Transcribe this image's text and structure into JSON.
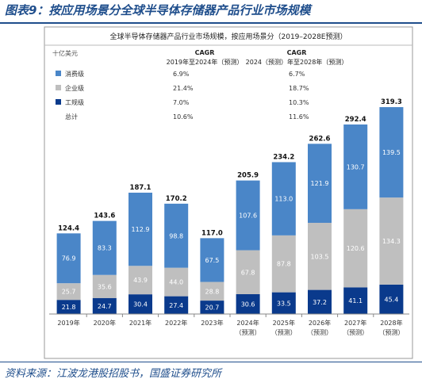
{
  "figure": {
    "title": "图表9：按应用场景分全球半导体存储器产品行业市场规模",
    "source": "资料来源：江波龙港股招股书，国盛证券研究所"
  },
  "chart_data": {
    "type": "bar",
    "stacked": true,
    "title": "全球半导体存储器产品行业市场规模，按应用场景分（2019–2028E预测）",
    "ylabel": "十亿美元",
    "categories": [
      [
        "2019年"
      ],
      [
        "2020年"
      ],
      [
        "2021年"
      ],
      [
        "2022年"
      ],
      [
        "2023年"
      ],
      [
        "2024年",
        "（预测）"
      ],
      [
        "2025年",
        "（预测）"
      ],
      [
        "2026年",
        "（预测）"
      ],
      [
        "2027年",
        "（预测）"
      ],
      [
        "2028年",
        "（预测）"
      ]
    ],
    "series": [
      {
        "name": "工规级",
        "color": "#0a3a8c",
        "values": [
          21.8,
          24.7,
          30.4,
          27.4,
          20.7,
          30.6,
          33.5,
          37.2,
          41.1,
          45.4
        ]
      },
      {
        "name": "企业级",
        "color": "#bfbfbf",
        "values": [
          25.7,
          35.6,
          43.9,
          44.0,
          28.8,
          67.8,
          87.8,
          103.5,
          120.6,
          134.3
        ]
      },
      {
        "name": "消费级",
        "color": "#4a86c8",
        "values": [
          76.9,
          83.3,
          112.9,
          98.8,
          67.5,
          107.6,
          113.0,
          121.9,
          130.7,
          139.5
        ]
      }
    ],
    "totals": [
      124.4,
      143.6,
      187.1,
      170.2,
      117.0,
      205.9,
      234.2,
      262.6,
      292.4,
      319.3
    ],
    "ylim": [
      0,
      330
    ],
    "grid": false,
    "legend": {
      "header_left": [
        "CAGR",
        "2019年至2024年（预测）"
      ],
      "header_right": [
        "CAGR",
        "2024（预测）年至2028年（预测）"
      ],
      "rows": [
        {
          "name": "消费级",
          "color": "#4a86c8",
          "cagr_a": "6.9%",
          "cagr_b": "6.7%"
        },
        {
          "name": "企业级",
          "color": "#bfbfbf",
          "cagr_a": "21.4%",
          "cagr_b": "18.7%"
        },
        {
          "name": "工规级",
          "color": "#0a3a8c",
          "cagr_a": "7.0%",
          "cagr_b": "10.3%"
        },
        {
          "name": "总计",
          "color": "",
          "cagr_a": "10.6%",
          "cagr_b": "11.6%"
        }
      ]
    }
  }
}
